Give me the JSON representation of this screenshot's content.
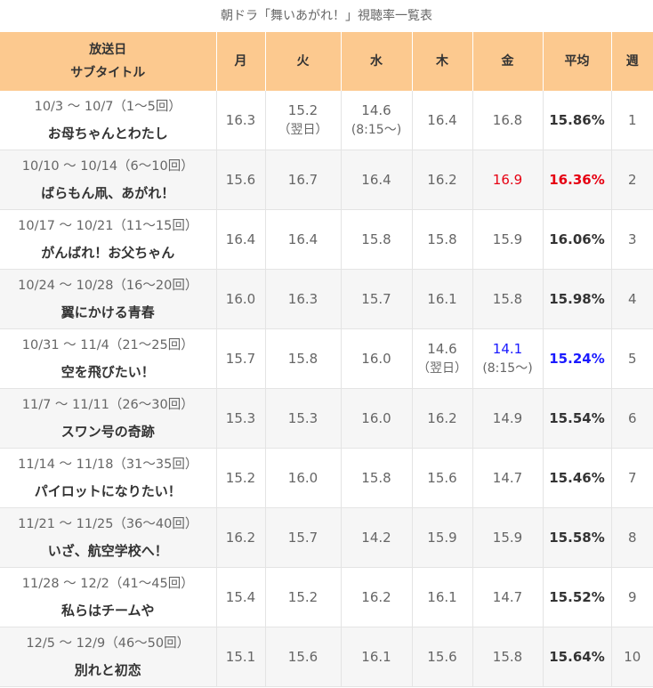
{
  "caption": "朝ドラ「舞いあがれ！」視聴率一覧表",
  "header": {
    "col1_line1": "放送日",
    "col1_line2": "サブタイトル",
    "mon": "月",
    "tue": "火",
    "wed": "水",
    "thu": "木",
    "fri": "金",
    "avg": "平均",
    "week": "週"
  },
  "rows": [
    {
      "dates": "10/3 ～ 10/7（1～5回）",
      "subtitle": "お母ちゃんとわたし",
      "mon": "16.3",
      "tue": "15.2",
      "tue_note": "（翌日）",
      "wed": "14.6",
      "wed_note": "(8:15～)",
      "thu": "16.4",
      "thu_note": "",
      "fri": "16.8",
      "fri_note": "",
      "avg": "15.86%",
      "week": "1"
    },
    {
      "dates": "10/10 ～ 10/14（6～10回）",
      "subtitle": "ばらもん凧、あがれ！",
      "mon": "15.6",
      "tue": "16.7",
      "tue_note": "",
      "wed": "16.4",
      "wed_note": "",
      "thu": "16.2",
      "thu_note": "",
      "fri": "16.9",
      "fri_note": "",
      "avg": "16.36%",
      "week": "2"
    },
    {
      "dates": "10/17 ～ 10/21（11～15回）",
      "subtitle": "がんばれ！お父ちゃん",
      "mon": "16.4",
      "tue": "16.4",
      "tue_note": "",
      "wed": "15.8",
      "wed_note": "",
      "thu": "15.8",
      "thu_note": "",
      "fri": "15.9",
      "fri_note": "",
      "avg": "16.06%",
      "week": "3"
    },
    {
      "dates": "10/24 ～ 10/28（16～20回）",
      "subtitle": "翼にかける青春",
      "mon": "16.0",
      "tue": "16.3",
      "tue_note": "",
      "wed": "15.7",
      "wed_note": "",
      "thu": "16.1",
      "thu_note": "",
      "fri": "15.8",
      "fri_note": "",
      "avg": "15.98%",
      "week": "4"
    },
    {
      "dates": "10/31 ～ 11/4（21～25回）",
      "subtitle": "空を飛びたい！",
      "mon": "15.7",
      "tue": "15.8",
      "tue_note": "",
      "wed": "16.0",
      "wed_note": "",
      "thu": "14.6",
      "thu_note": "（翌日）",
      "fri": "14.1",
      "fri_note": "(8:15～)",
      "avg": "15.24%",
      "week": "5"
    },
    {
      "dates": "11/7 ～ 11/11（26～30回）",
      "subtitle": "スワン号の奇跡",
      "mon": "15.3",
      "tue": "15.3",
      "tue_note": "",
      "wed": "16.0",
      "wed_note": "",
      "thu": "16.2",
      "thu_note": "",
      "fri": "14.9",
      "fri_note": "",
      "avg": "15.54%",
      "week": "6"
    },
    {
      "dates": "11/14 ～ 11/18（31～35回）",
      "subtitle": "パイロットになりたい！",
      "mon": "15.2",
      "tue": "16.0",
      "tue_note": "",
      "wed": "15.8",
      "wed_note": "",
      "thu": "15.6",
      "thu_note": "",
      "fri": "14.7",
      "fri_note": "",
      "avg": "15.46%",
      "week": "7"
    },
    {
      "dates": "11/21 ～ 11/25（36～40回）",
      "subtitle": "いざ、航空学校へ！",
      "mon": "16.2",
      "tue": "15.7",
      "tue_note": "",
      "wed": "14.2",
      "wed_note": "",
      "thu": "15.9",
      "thu_note": "",
      "fri": "15.9",
      "fri_note": "",
      "avg": "15.58%",
      "week": "8"
    },
    {
      "dates": "11/28 ～ 12/2（41～45回）",
      "subtitle": "私らはチームや",
      "mon": "15.4",
      "tue": "15.2",
      "tue_note": "",
      "wed": "16.2",
      "wed_note": "",
      "thu": "16.1",
      "thu_note": "",
      "fri": "14.7",
      "fri_note": "",
      "avg": "15.52%",
      "week": "9"
    },
    {
      "dates": "12/5 ～ 12/9（46～50回）",
      "subtitle": "別れと初恋",
      "mon": "15.1",
      "tue": "15.6",
      "tue_note": "",
      "wed": "16.1",
      "wed_note": "",
      "thu": "15.6",
      "thu_note": "",
      "fri": "15.8",
      "fri_note": "",
      "avg": "15.64%",
      "week": "10"
    }
  ],
  "highlight_colors": {
    "max": "#e60012",
    "min": "#1a1aff"
  },
  "highlights": {
    "max_fri_row": 1,
    "max_avg_row": 1,
    "min_fri_row": 4,
    "min_avg_row": 4
  }
}
